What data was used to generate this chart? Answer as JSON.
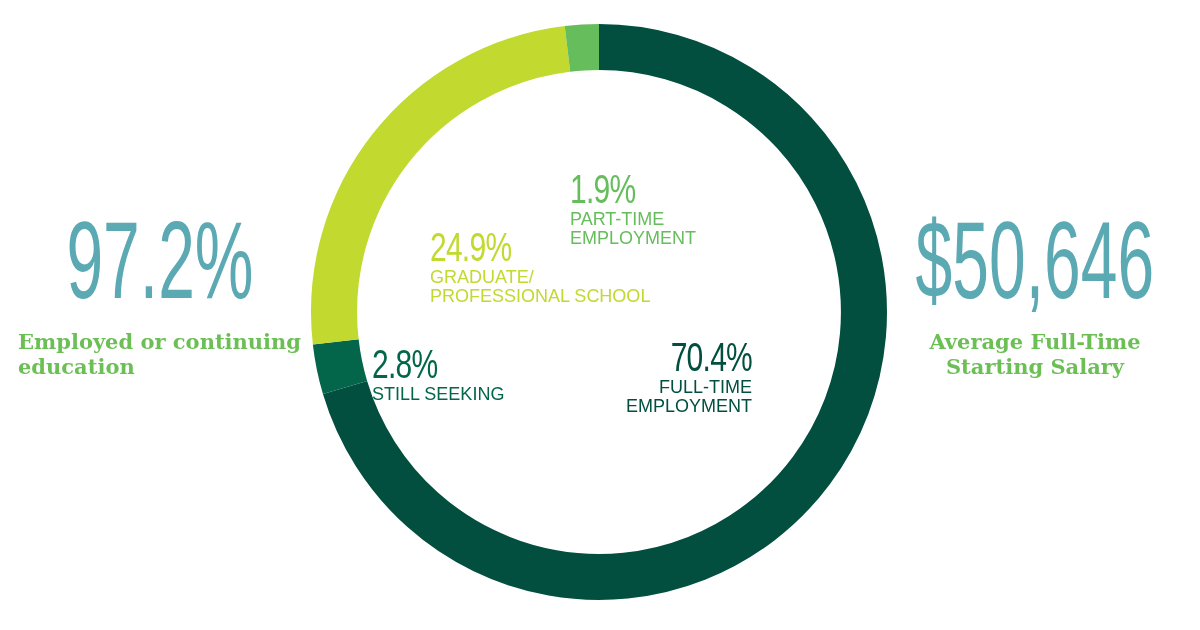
{
  "chart_data": {
    "type": "donut",
    "categories": [
      "FULL-TIME EMPLOYMENT",
      "STILL SEEKING",
      "GRADUATE/ PROFESSIONAL SCHOOL",
      "PART-TIME EMPLOYMENT"
    ],
    "values": [
      70.4,
      2.8,
      24.9,
      1.9
    ],
    "value_labels": [
      "70.4%",
      "2.8%",
      "24.9%",
      "1.9%"
    ],
    "colors": [
      "#024f40",
      "#03664a",
      "#c2d92f",
      "#66bd5c"
    ],
    "legend": false,
    "annotations": [
      "97.2%",
      "Employed or continuing education",
      "$50,646",
      "Average Full-Time Starting Salary"
    ]
  }
}
